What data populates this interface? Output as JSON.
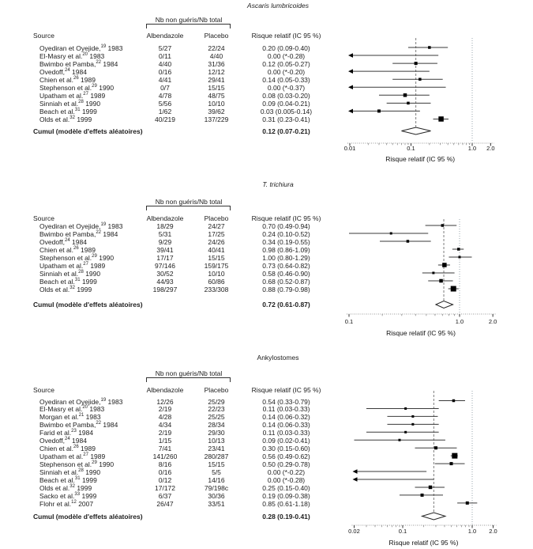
{
  "labels": {
    "group_header": "Nb non guéris/Nb total",
    "col_source": "Source",
    "col_albendazole": "Albendazole",
    "col_placebo": "Placebo",
    "col_rr": "Risque relatif (IC 95 %)",
    "cumul_label": "Cumul (modèle d'effets aléatoires)",
    "xlabel": "Risque relatif (IC 95 %)"
  },
  "chart_data": [
    {
      "type": "forest",
      "title": "Ascaris lumbricoides",
      "xlabel": "Risque relatif (IC 95 %)",
      "x_scale": "log",
      "xlim": [
        0.01,
        2.0
      ],
      "ticks": [
        0.01,
        0.1,
        1.0,
        2.0
      ],
      "tick_labels": [
        "0.01",
        "0.1",
        "1.0",
        "2.0"
      ],
      "studies": [
        {
          "author": "Oyediran et Oyejide,",
          "ref": "19",
          "year": "1983",
          "albendazole": "5/27",
          "placebo": "22/24",
          "rr_text": "0.20 (0.09-0.40)",
          "rr": 0.2,
          "lo": 0.09,
          "hi": 0.4,
          "arrow": false,
          "weight": 3.5
        },
        {
          "author": "El-Masry et al.",
          "ref": "20",
          "year": "1983",
          "albendazole": "0/11",
          "placebo": "4/40",
          "rr_text": "0.00 (*-0.28)",
          "rr": null,
          "lo": null,
          "hi": 0.28,
          "arrow": true,
          "weight": 0
        },
        {
          "author": "Bwimbo et Pamba,",
          "ref": "22",
          "year": "1984",
          "albendazole": "4/40",
          "placebo": "31/36",
          "rr_text": "0.12 (0.05-0.27)",
          "rr": 0.12,
          "lo": 0.05,
          "hi": 0.27,
          "arrow": false,
          "weight": 4
        },
        {
          "author": "Ovedoff,",
          "ref": "24",
          "year": "1984",
          "albendazole": "0/16",
          "placebo": "12/12",
          "rr_text": "0.00 (*-0.20)",
          "rr": null,
          "lo": null,
          "hi": 0.2,
          "arrow": true,
          "weight": 0
        },
        {
          "author": "Chien et al.",
          "ref": "26",
          "year": "1989",
          "albendazole": "4/41",
          "placebo": "29/41",
          "rr_text": "0.14 (0.05-0.33)",
          "rr": 0.14,
          "lo": 0.05,
          "hi": 0.33,
          "arrow": false,
          "weight": 3.5
        },
        {
          "author": "Stephenson et al.",
          "ref": "29",
          "year": "1990",
          "albendazole": "0/7",
          "placebo": "15/15",
          "rr_text": "0.00 (*-0.37)",
          "rr": null,
          "lo": null,
          "hi": 0.37,
          "arrow": true,
          "weight": 0
        },
        {
          "author": "Upatham et al.",
          "ref": "27",
          "year": "1989",
          "albendazole": "4/78",
          "placebo": "48/75",
          "rr_text": "0.08 (0.03-0.20)",
          "rr": 0.08,
          "lo": 0.03,
          "hi": 0.2,
          "arrow": false,
          "weight": 4.5
        },
        {
          "author": "Sinniah et al.",
          "ref": "28",
          "year": "1990",
          "albendazole": "5/56",
          "placebo": "10/10",
          "rr_text": "0.09 (0.04-0.21)",
          "rr": 0.09,
          "lo": 0.04,
          "hi": 0.21,
          "arrow": false,
          "weight": 3.5
        },
        {
          "author": "Beach et al.",
          "ref": "31",
          "year": "1999",
          "albendazole": "1/62",
          "placebo": "39/62",
          "rr_text": "0.03 (0.005-0.14)",
          "rr": 0.03,
          "lo": 0.005,
          "hi": 0.14,
          "arrow": true,
          "weight": 4
        },
        {
          "author": "Olds et al.",
          "ref": "32",
          "year": "1999",
          "albendazole": "40/219",
          "placebo": "137/229",
          "rr_text": "0.31 (0.23-0.41)",
          "rr": 0.31,
          "lo": 0.23,
          "hi": 0.41,
          "arrow": false,
          "weight": 6.5
        }
      ],
      "pooled": {
        "rr": 0.12,
        "lo": 0.07,
        "hi": 0.21
      },
      "pooled_text": "0.12 (0.07-0.21)"
    },
    {
      "type": "forest",
      "title": "T. trichiura",
      "xlabel": "Risque relatif (IC 95 %)",
      "x_scale": "log",
      "xlim": [
        0.1,
        2.0
      ],
      "ticks": [
        0.1,
        1.0,
        2.0
      ],
      "tick_labels": [
        "0.1",
        "1.0",
        "2.0"
      ],
      "studies": [
        {
          "author": "Oyediran et Oyejide,",
          "ref": "19",
          "year": "1983",
          "albendazole": "18/29",
          "placebo": "24/27",
          "rr_text": "0.70 (0.49-0.94)",
          "rr": 0.7,
          "lo": 0.49,
          "hi": 0.94,
          "arrow": false,
          "weight": 3.5
        },
        {
          "author": "Bwimbo et Pamba,",
          "ref": "22",
          "year": "1984",
          "albendazole": "5/31",
          "placebo": "17/25",
          "rr_text": "0.24 (0.10-0.52)",
          "rr": 0.24,
          "lo": 0.1,
          "hi": 0.52,
          "arrow": false,
          "weight": 3
        },
        {
          "author": "Ovedoff,",
          "ref": "24",
          "year": "1984",
          "albendazole": "9/29",
          "placebo": "24/26",
          "rr_text": "0.34 (0.19-0.55)",
          "rr": 0.34,
          "lo": 0.19,
          "hi": 0.55,
          "arrow": false,
          "weight": 3.5
        },
        {
          "author": "Chien et al.",
          "ref": "26",
          "year": "1989",
          "albendazole": "39/41",
          "placebo": "40/41",
          "rr_text": "0.98 (0.86-1.09)",
          "rr": 0.98,
          "lo": 0.86,
          "hi": 1.09,
          "arrow": false,
          "weight": 3.5
        },
        {
          "author": "Stephenson et al.",
          "ref": "29",
          "year": "1990",
          "albendazole": "17/17",
          "placebo": "15/15",
          "rr_text": "1.00 (0.80-1.29)",
          "rr": 1.0,
          "lo": 0.8,
          "hi": 1.29,
          "arrow": false,
          "weight": 3
        },
        {
          "author": "Upatham et al.",
          "ref": "27",
          "year": "1989",
          "albendazole": "97/146",
          "placebo": "159/175",
          "rr_text": "0.73 (0.64-0.82)",
          "rr": 0.73,
          "lo": 0.64,
          "hi": 0.82,
          "arrow": false,
          "weight": 5.5
        },
        {
          "author": "Sinniah et al.",
          "ref": "28",
          "year": "1990",
          "albendazole": "30/52",
          "placebo": "10/10",
          "rr_text": "0.58 (0.46-0.90)",
          "rr": 0.58,
          "lo": 0.46,
          "hi": 0.9,
          "arrow": false,
          "weight": 3
        },
        {
          "author": "Beach et al.",
          "ref": "31",
          "year": "1999",
          "albendazole": "44/93",
          "placebo": "60/86",
          "rr_text": "0.68 (0.52-0.87)",
          "rr": 0.68,
          "lo": 0.52,
          "hi": 0.87,
          "arrow": false,
          "weight": 4.5
        },
        {
          "author": "Olds et al.",
          "ref": "32",
          "year": "1999",
          "albendazole": "198/297",
          "placebo": "233/308",
          "rr_text": "0.88 (0.79-0.98)",
          "rr": 0.88,
          "lo": 0.79,
          "hi": 0.98,
          "arrow": false,
          "weight": 7
        }
      ],
      "pooled": {
        "rr": 0.72,
        "lo": 0.61,
        "hi": 0.87
      },
      "pooled_text": "0.72 (0.61-0.87)"
    },
    {
      "type": "forest",
      "title": "Ankylostomes",
      "xlabel": "Risque relatif (IC 95 %)",
      "x_scale": "log",
      "xlim": [
        0.02,
        2.0
      ],
      "ticks": [
        0.02,
        0.1,
        1.0,
        2.0
      ],
      "tick_labels": [
        "0.02",
        "0.1",
        "1.0",
        "2.0"
      ],
      "studies": [
        {
          "author": "Oyediran et Oyejide,",
          "ref": "19",
          "year": "1983",
          "albendazole": "12/26",
          "placebo": "25/29",
          "rr_text": "0.54 (0.33-0.79)",
          "rr": 0.54,
          "lo": 0.33,
          "hi": 0.79,
          "arrow": false,
          "weight": 3.5
        },
        {
          "author": "El-Masry et al.",
          "ref": "20",
          "year": "1983",
          "albendazole": "2/19",
          "placebo": "22/23",
          "rr_text": "0.11 (0.03-0.33)",
          "rr": 0.11,
          "lo": 0.03,
          "hi": 0.33,
          "arrow": false,
          "weight": 3
        },
        {
          "author": "Morgan et al.",
          "ref": "21",
          "year": "1983",
          "albendazole": "4/28",
          "placebo": "25/25",
          "rr_text": "0.14 (0.06-0.32)",
          "rr": 0.14,
          "lo": 0.06,
          "hi": 0.32,
          "arrow": false,
          "weight": 3
        },
        {
          "author": "Bwimbo et Pamba,",
          "ref": "22",
          "year": "1984",
          "albendazole": "4/34",
          "placebo": "28/34",
          "rr_text": "0.14 (0.06-0.33)",
          "rr": 0.14,
          "lo": 0.06,
          "hi": 0.33,
          "arrow": false,
          "weight": 3
        },
        {
          "author": "Farid et al.",
          "ref": "23",
          "year": "1984",
          "albendazole": "2/19",
          "placebo": "29/30",
          "rr_text": "0.11 (0.03-0.33)",
          "rr": 0.11,
          "lo": 0.03,
          "hi": 0.33,
          "arrow": false,
          "weight": 3
        },
        {
          "author": "Ovedoff,",
          "ref": "24",
          "year": "1984",
          "albendazole": "1/15",
          "placebo": "10/13",
          "rr_text": "0.09 (0.02-0.41)",
          "rr": 0.09,
          "lo": 0.02,
          "hi": 0.41,
          "arrow": false,
          "weight": 3
        },
        {
          "author": "Chien et al.",
          "ref": "26",
          "year": "1989",
          "albendazole": "7/41",
          "placebo": "23/41",
          "rr_text": "0.30 (0.15-0.60)",
          "rr": 0.3,
          "lo": 0.15,
          "hi": 0.6,
          "arrow": false,
          "weight": 4
        },
        {
          "author": "Upatham et al.",
          "ref": "27",
          "year": "1989",
          "albendazole": "141/260",
          "placebo": "280/287",
          "rr_text": "0.56 (0.49-0.62)",
          "rr": 0.56,
          "lo": 0.49,
          "hi": 0.62,
          "arrow": false,
          "weight": 7
        },
        {
          "author": "Stephenson et al.",
          "ref": "29",
          "year": "1990",
          "albendazole": "8/16",
          "placebo": "15/15",
          "rr_text": "0.50 (0.29-0.78)",
          "rr": 0.5,
          "lo": 0.29,
          "hi": 0.78,
          "arrow": false,
          "weight": 4
        },
        {
          "author": "Sinniah et al.",
          "ref": "28",
          "year": "1990",
          "albendazole": "0/16",
          "placebo": "5/5",
          "rr_text": "0.00 (*-0.22)",
          "rr": null,
          "lo": null,
          "hi": 0.22,
          "arrow": true,
          "weight": 0
        },
        {
          "author": "Beach et al.",
          "ref": "31",
          "year": "1999",
          "albendazole": "0/12",
          "placebo": "14/16",
          "rr_text": "0.00 (*-0.28)",
          "rr": null,
          "lo": null,
          "hi": 0.28,
          "arrow": true,
          "weight": 0
        },
        {
          "author": "Olds et al.",
          "ref": "32",
          "year": "1999",
          "albendazole": "17/172",
          "placebo": "79/198c",
          "rr_text": "0.25 (0.15-0.40)",
          "rr": 0.25,
          "lo": 0.15,
          "hi": 0.4,
          "arrow": false,
          "weight": 4.5
        },
        {
          "author": "Sacko et al.",
          "ref": "33",
          "year": "1999",
          "albendazole": "6/37",
          "placebo": "30/36",
          "rr_text": "0.19 (0.09-0.38)",
          "rr": 0.19,
          "lo": 0.09,
          "hi": 0.38,
          "arrow": false,
          "weight": 4
        },
        {
          "author": "Flohr et al.",
          "ref": "12",
          "year": "2007",
          "albendazole": "26/47",
          "placebo": "33/51",
          "rr_text": "0.85 (0.61-1.18)",
          "rr": 0.85,
          "lo": 0.61,
          "hi": 1.18,
          "arrow": false,
          "weight": 4
        }
      ],
      "pooled": {
        "rr": 0.28,
        "lo": 0.19,
        "hi": 0.41
      },
      "pooled_text": "0.28 (0.19-0.41)"
    }
  ]
}
